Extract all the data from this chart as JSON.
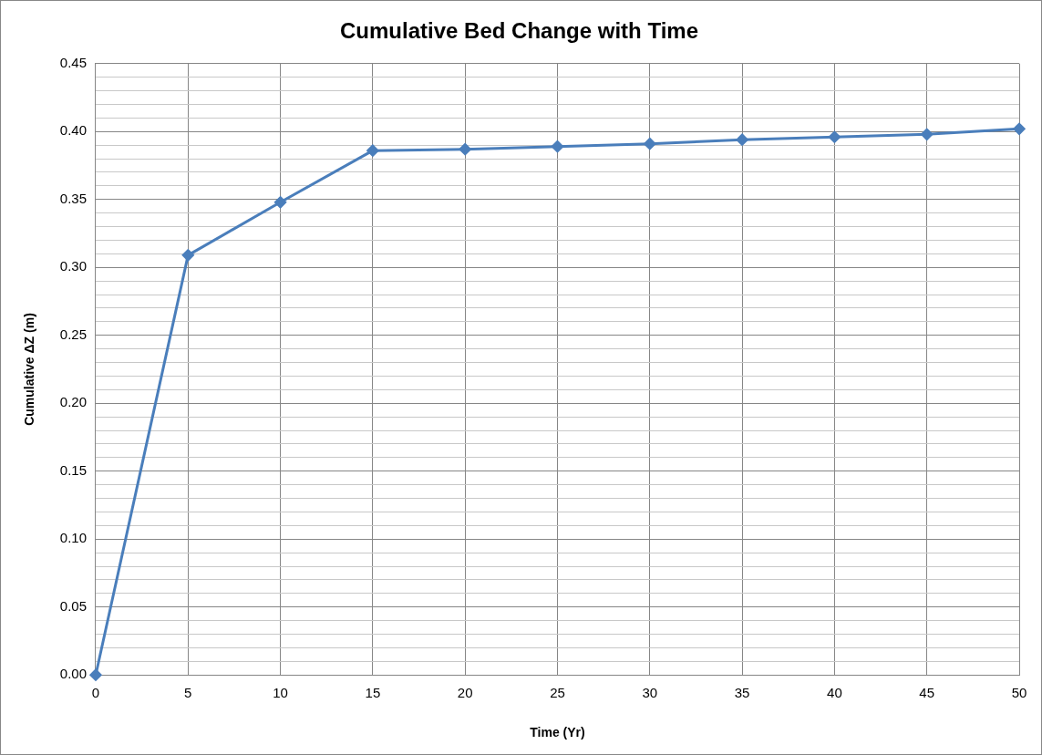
{
  "chart_data": {
    "type": "line",
    "title": "Cumulative Bed Change with Time",
    "xlabel": "Time (Yr)",
    "ylabel": "Cumulative ΔZ (m)",
    "x": [
      0,
      5,
      10,
      15,
      20,
      25,
      30,
      35,
      40,
      45,
      50
    ],
    "series": [
      {
        "color": "#4a7ebb",
        "values": [
          0,
          0.309,
          0.348,
          0.386,
          0.387,
          0.389,
          0.391,
          0.394,
          0.396,
          0.398,
          0.402
        ]
      }
    ],
    "xlim": [
      0,
      50
    ],
    "xticks": [
      0,
      5,
      10,
      15,
      20,
      25,
      30,
      35,
      40,
      45,
      50
    ],
    "ylim": [
      0,
      0.45
    ],
    "yticks": [
      {
        "value": 0,
        "label": "0.00"
      },
      {
        "value": 0.01,
        "label": null
      },
      {
        "value": 0.02,
        "label": null
      },
      {
        "value": 0.03,
        "label": null
      },
      {
        "value": 0.04,
        "label": null
      },
      {
        "value": 0.05,
        "label": "0.05"
      },
      {
        "value": 0.06,
        "label": null
      },
      {
        "value": 0.07,
        "label": null
      },
      {
        "value": 0.08,
        "label": null
      },
      {
        "value": 0.09,
        "label": null
      },
      {
        "value": 0.1,
        "label": "0.10"
      },
      {
        "value": 0.11,
        "label": null
      },
      {
        "value": 0.12,
        "label": null
      },
      {
        "value": 0.13,
        "label": null
      },
      {
        "value": 0.14,
        "label": null
      },
      {
        "value": 0.15,
        "label": "0.15"
      },
      {
        "value": 0.16,
        "label": null
      },
      {
        "value": 0.17,
        "label": null
      },
      {
        "value": 0.18,
        "label": null
      },
      {
        "value": 0.19,
        "label": null
      },
      {
        "value": 0.2,
        "label": "0.20"
      },
      {
        "value": 0.21,
        "label": null
      },
      {
        "value": 0.22,
        "label": null
      },
      {
        "value": 0.23,
        "label": null
      },
      {
        "value": 0.24,
        "label": null
      },
      {
        "value": 0.25,
        "label": "0.25"
      },
      {
        "value": 0.26,
        "label": null
      },
      {
        "value": 0.27,
        "label": null
      },
      {
        "value": 0.28,
        "label": null
      },
      {
        "value": 0.29,
        "label": null
      },
      {
        "value": 0.3,
        "label": "0.30"
      },
      {
        "value": 0.31,
        "label": null
      },
      {
        "value": 0.32,
        "label": null
      },
      {
        "value": 0.33,
        "label": null
      },
      {
        "value": 0.34,
        "label": null
      },
      {
        "value": 0.35,
        "label": "0.35"
      },
      {
        "value": 0.36,
        "label": null
      },
      {
        "value": 0.37,
        "label": null
      },
      {
        "value": 0.38,
        "label": null
      },
      {
        "value": 0.39,
        "label": null
      },
      {
        "value": 0.4,
        "label": "0.40"
      },
      {
        "value": 0.41,
        "label": null
      },
      {
        "value": 0.42,
        "label": null
      },
      {
        "value": 0.43,
        "label": null
      },
      {
        "value": 0.44,
        "label": null
      },
      {
        "value": 0.45,
        "label": "0.45"
      }
    ],
    "grid": true,
    "legend": false,
    "marker": "diamond",
    "line_style": "solid"
  }
}
